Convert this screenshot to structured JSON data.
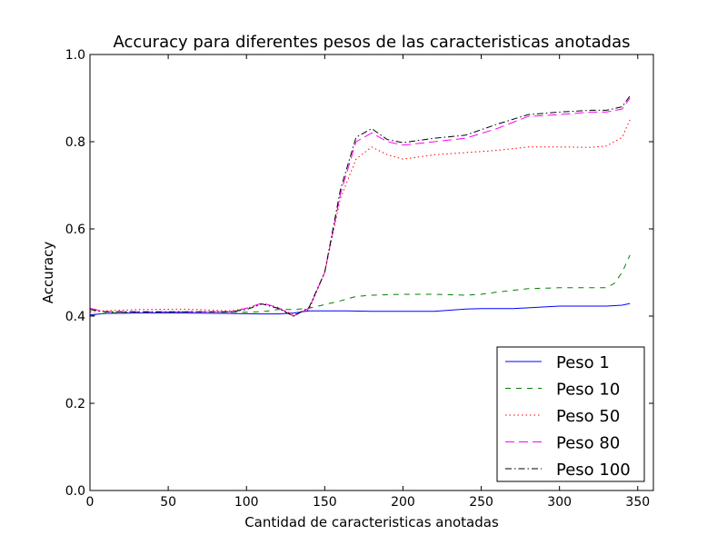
{
  "chart_data": {
    "type": "line",
    "title": "Accuracy para diferentes pesos de las caracteristicas anotadas",
    "xlabel": "Cantidad de caracteristicas anotadas",
    "ylabel": "Accuracy",
    "xlim": [
      0,
      360
    ],
    "ylim": [
      0.0,
      1.0
    ],
    "xticks": [
      0,
      50,
      100,
      150,
      200,
      250,
      300,
      350
    ],
    "yticks": [
      0.0,
      0.2,
      0.4,
      0.6,
      0.8,
      1.0
    ],
    "xtick_labels": [
      "0",
      "50",
      "100",
      "150",
      "200",
      "250",
      "300",
      "350"
    ],
    "ytick_labels": [
      "0.0",
      "0.2",
      "0.4",
      "0.6",
      "0.8",
      "1.0"
    ],
    "grid": false,
    "legend_position": "lower-right",
    "series": [
      {
        "name": "Peso 1",
        "color": "#0000ff",
        "style": "solid",
        "x": [
          0,
          10,
          30,
          60,
          90,
          110,
          120,
          130,
          140,
          160,
          180,
          200,
          220,
          240,
          250,
          260,
          270,
          280,
          300,
          320,
          330,
          340,
          345
        ],
        "y": [
          0.403,
          0.406,
          0.407,
          0.407,
          0.406,
          0.405,
          0.405,
          0.407,
          0.412,
          0.412,
          0.411,
          0.411,
          0.411,
          0.416,
          0.417,
          0.417,
          0.417,
          0.419,
          0.423,
          0.423,
          0.423,
          0.425,
          0.429
        ]
      },
      {
        "name": "Peso 10",
        "color": "#008000",
        "style": "dashed",
        "x": [
          0,
          10,
          30,
          60,
          90,
          100,
          110,
          120,
          130,
          140,
          160,
          170,
          180,
          200,
          220,
          240,
          250,
          260,
          280,
          300,
          320,
          330,
          335,
          340,
          345
        ],
        "y": [
          0.4,
          0.407,
          0.409,
          0.41,
          0.409,
          0.409,
          0.41,
          0.415,
          0.415,
          0.418,
          0.435,
          0.445,
          0.448,
          0.45,
          0.45,
          0.448,
          0.45,
          0.455,
          0.463,
          0.465,
          0.465,
          0.465,
          0.475,
          0.5,
          0.54
        ]
      },
      {
        "name": "Peso 50",
        "color": "#ff0000",
        "style": "dotted",
        "x": [
          0,
          10,
          30,
          60,
          90,
          100,
          110,
          120,
          130,
          140,
          150,
          160,
          170,
          180,
          190,
          200,
          220,
          240,
          260,
          280,
          300,
          320,
          330,
          340,
          345
        ],
        "y": [
          0.41,
          0.412,
          0.415,
          0.416,
          0.412,
          0.418,
          0.428,
          0.42,
          0.403,
          0.415,
          0.5,
          0.67,
          0.76,
          0.788,
          0.77,
          0.76,
          0.77,
          0.775,
          0.78,
          0.788,
          0.788,
          0.787,
          0.79,
          0.81,
          0.85
        ]
      },
      {
        "name": "Peso 80",
        "color": "#ff00ff",
        "style": "longdash",
        "x": [
          0,
          10,
          30,
          60,
          90,
          100,
          110,
          120,
          130,
          140,
          150,
          160,
          170,
          180,
          190,
          200,
          220,
          240,
          260,
          280,
          300,
          320,
          330,
          340,
          345
        ],
        "y": [
          0.418,
          0.41,
          0.41,
          0.41,
          0.41,
          0.418,
          0.43,
          0.42,
          0.4,
          0.418,
          0.5,
          0.68,
          0.8,
          0.82,
          0.8,
          0.792,
          0.8,
          0.808,
          0.83,
          0.858,
          0.862,
          0.868,
          0.868,
          0.875,
          0.9
        ]
      },
      {
        "name": "Peso 100",
        "color": "#000000",
        "style": "dashdot",
        "x": [
          0,
          10,
          30,
          60,
          90,
          100,
          110,
          120,
          130,
          140,
          150,
          160,
          170,
          180,
          190,
          200,
          220,
          240,
          260,
          280,
          300,
          320,
          330,
          340,
          345
        ],
        "y": [
          0.415,
          0.41,
          0.41,
          0.41,
          0.41,
          0.415,
          0.428,
          0.418,
          0.4,
          0.42,
          0.5,
          0.69,
          0.81,
          0.83,
          0.805,
          0.798,
          0.808,
          0.815,
          0.84,
          0.862,
          0.868,
          0.872,
          0.872,
          0.88,
          0.905
        ]
      }
    ]
  }
}
